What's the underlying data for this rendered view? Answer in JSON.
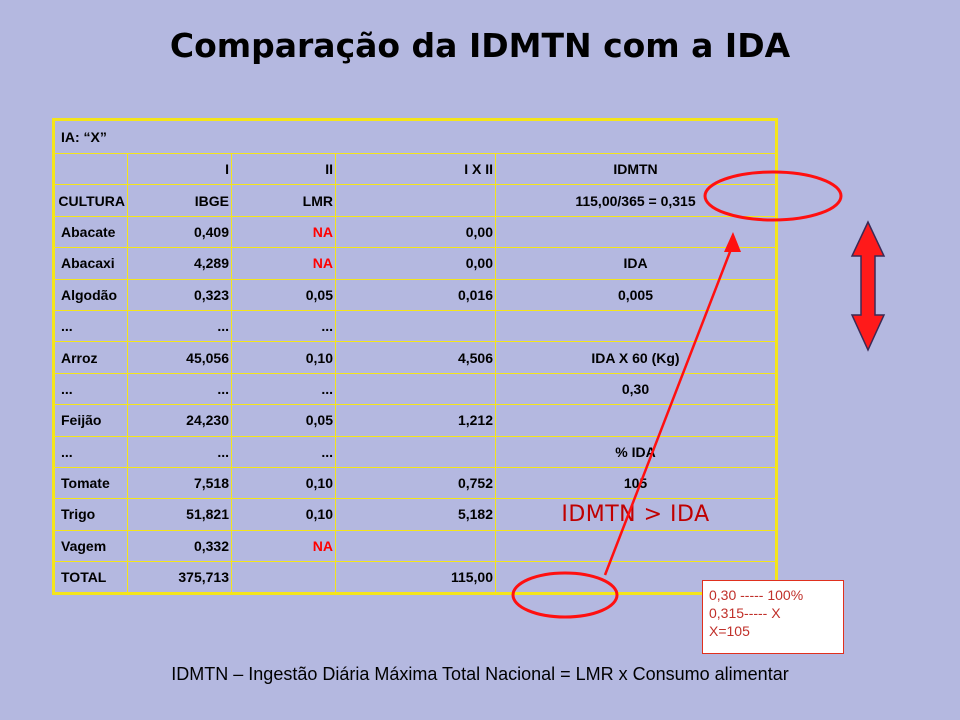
{
  "title": "Comparação da IDMTN com a IDA",
  "table": {
    "header_ia": "IA: “X”",
    "col_headers": [
      "",
      "I",
      "II",
      "I X II",
      "IDMTN"
    ],
    "sub_headers": [
      "CULTURA",
      "IBGE",
      "LMR",
      "",
      "115,00/365 = 0,315"
    ],
    "rows": [
      {
        "cultura": "Abacate",
        "ibge": "0,409",
        "lmr": "NA",
        "ixii": "0,00",
        "side": ""
      },
      {
        "cultura": "Abacaxi",
        "ibge": "4,289",
        "lmr": "NA",
        "ixii": "0,00",
        "side": "IDA"
      },
      {
        "cultura": "Algodão",
        "ibge": "0,323",
        "lmr": "0,05",
        "ixii": "0,016",
        "side": "0,005"
      },
      {
        "cultura": "...",
        "ibge": "...",
        "lmr": "...",
        "ixii": "",
        "side": ""
      },
      {
        "cultura": "Arroz",
        "ibge": "45,056",
        "lmr": "0,10",
        "ixii": "4,506",
        "side": "IDA X 60 (Kg)"
      },
      {
        "cultura": "...",
        "ibge": "...",
        "lmr": "...",
        "ixii": "",
        "side": "0,30"
      },
      {
        "cultura": "Feijão",
        "ibge": "24,230",
        "lmr": "0,05",
        "ixii": "1,212",
        "side": ""
      },
      {
        "cultura": "...",
        "ibge": "...",
        "lmr": "...",
        "ixii": "",
        "side": "% IDA"
      },
      {
        "cultura": "Tomate",
        "ibge": "7,518",
        "lmr": "0,10",
        "ixii": "0,752",
        "side": "105"
      },
      {
        "cultura": "Trigo",
        "ibge": "51,821",
        "lmr": "0,10",
        "ixii": "5,182",
        "side": "IDMTN > IDA"
      },
      {
        "cultura": "Vagem",
        "ibge": "0,332",
        "lmr": "NA",
        "ixii": "",
        "side": ""
      },
      {
        "cultura": "TOTAL",
        "ibge": "375,713",
        "lmr": "",
        "ixii": "115,00",
        "side": ""
      }
    ]
  },
  "note": {
    "line1": "0,30 ----- 100%",
    "line2": "0,315----- X",
    "line3": "X=105"
  },
  "footer": "IDMTN – Ingestão Diária Máxima Total Nacional =  LMR  x Consumo alimentar",
  "colors": {
    "background": "#b4b8e0",
    "table_border": "#f4e51a",
    "accent_red": "#ff0000",
    "highlight_text": "#c00000"
  }
}
